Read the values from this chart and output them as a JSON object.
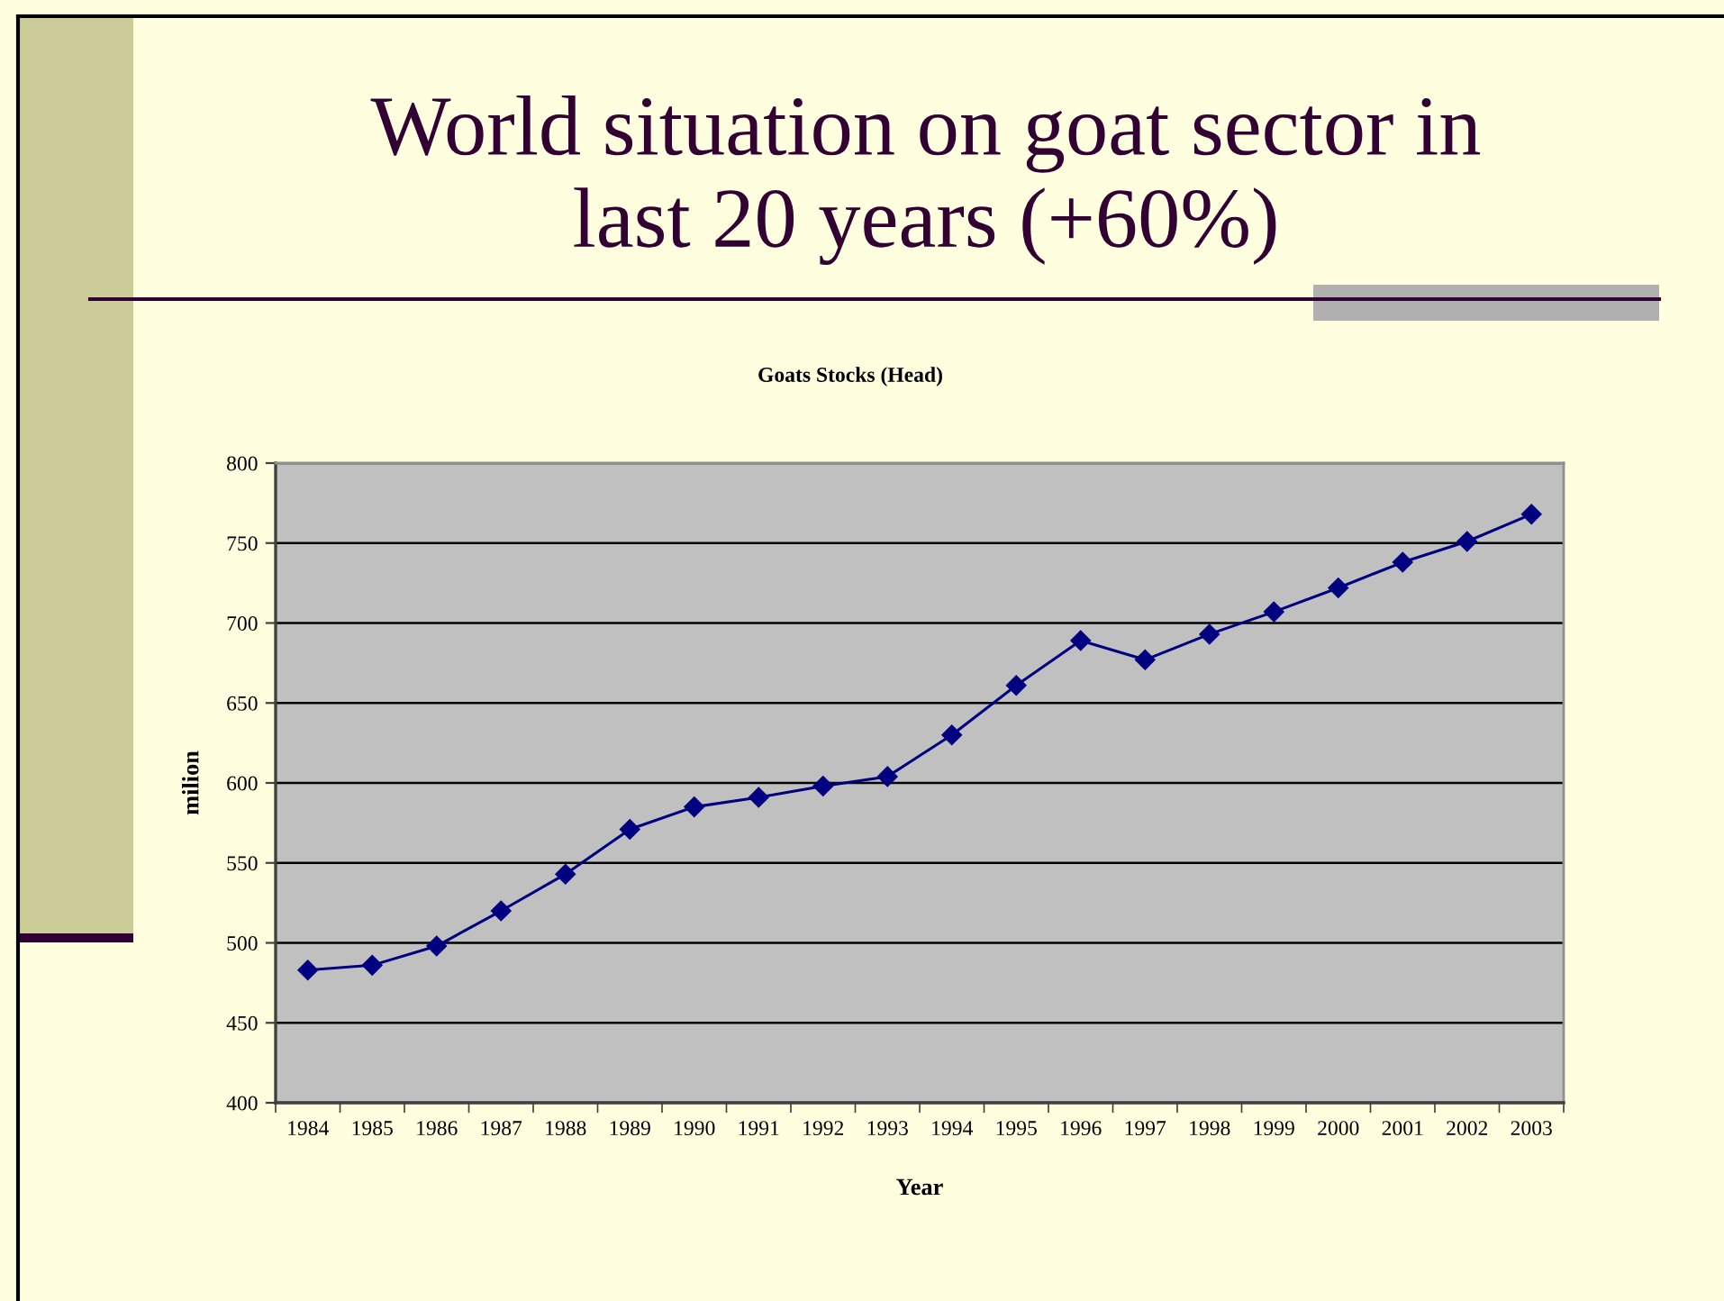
{
  "chart_data": {
    "type": "line",
    "title": "World situation on goat sector in\nlast 20 years (+60%)",
    "subtitle": "Goats Stocks (Head)",
    "xlabel": "Year",
    "ylabel": "milion",
    "categories": [
      "1984",
      "1985",
      "1986",
      "1987",
      "1988",
      "1989",
      "1990",
      "1991",
      "1992",
      "1993",
      "1994",
      "1995",
      "1996",
      "1997",
      "1998",
      "1999",
      "2000",
      "2001",
      "2002",
      "2003"
    ],
    "series": [
      {
        "color": "#000080",
        "values": [
          483,
          486,
          498,
          520,
          543,
          571,
          585,
          591,
          598,
          604,
          630,
          661,
          689,
          677,
          693,
          707,
          722,
          738,
          751,
          768
        ]
      }
    ],
    "ylim": [
      400,
      800
    ],
    "yticks": [
      400,
      450,
      500,
      550,
      600,
      650,
      700,
      750,
      800
    ],
    "grid": "y",
    "marker": "diamond",
    "line_style": "solid"
  }
}
